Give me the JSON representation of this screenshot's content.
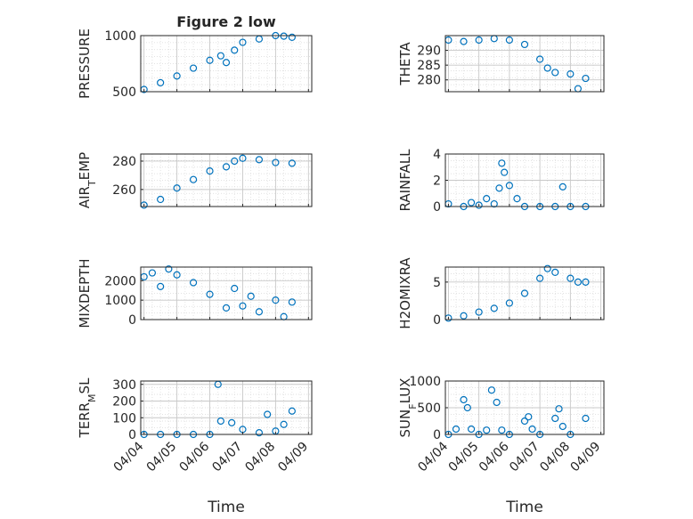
{
  "figure": {
    "title": "Figure 2 low",
    "xlabel": "Time",
    "x_tick_labels": [
      "04/04",
      "04/05",
      "04/06",
      "04/07",
      "04/08",
      "04/09"
    ],
    "marker_color": "#0072BD"
  },
  "chart_data": [
    {
      "type": "scatter",
      "name": "PRESSURE",
      "ylabel": "PRESSURE",
      "subscript": null,
      "xlim": [
        "04/04",
        "04/09"
      ],
      "ylim": [
        500,
        1000
      ],
      "yticks": [
        500,
        1000
      ],
      "grid": true,
      "title": "Figure 2 low",
      "x": [
        "04/04 00:00",
        "04/04 12:00",
        "04/05 00:00",
        "04/05 12:00",
        "04/06 00:00",
        "04/06 08:00",
        "04/06 12:00",
        "04/06 18:00",
        "04/07 00:00",
        "04/07 12:00",
        "04/08 00:00",
        "04/08 06:00",
        "04/08 12:00"
      ],
      "y": [
        520,
        580,
        640,
        710,
        780,
        820,
        760,
        870,
        940,
        970,
        1000,
        995,
        985
      ]
    },
    {
      "type": "scatter",
      "name": "THETA",
      "ylabel": "THETA",
      "subscript": null,
      "xlim": [
        "04/04",
        "04/09"
      ],
      "ylim": [
        276,
        295
      ],
      "yticks": [
        280,
        285,
        290
      ],
      "grid": true,
      "x": [
        "04/04 00:00",
        "04/04 12:00",
        "04/05 00:00",
        "04/05 12:00",
        "04/06 00:00",
        "04/06 12:00",
        "04/07 00:00",
        "04/07 06:00",
        "04/07 12:00",
        "04/08 00:00",
        "04/08 06:00",
        "04/08 12:00"
      ],
      "y": [
        293.5,
        293,
        293.5,
        294,
        293.5,
        292,
        287,
        284,
        282.5,
        282,
        277,
        280.5
      ]
    },
    {
      "type": "scatter",
      "name": "AIR_TEMP",
      "ylabel": "AIR",
      "subscript": "T",
      "ylabel_suffix": "EMP",
      "xlim": [
        "04/04",
        "04/09"
      ],
      "ylim": [
        248,
        285
      ],
      "yticks": [
        260,
        280
      ],
      "grid": true,
      "x": [
        "04/04 00:00",
        "04/04 12:00",
        "04/05 00:00",
        "04/05 12:00",
        "04/06 00:00",
        "04/06 12:00",
        "04/06 18:00",
        "04/07 00:00",
        "04/07 12:00",
        "04/08 00:00",
        "04/08 12:00"
      ],
      "y": [
        249,
        253,
        261,
        267,
        273,
        276,
        280,
        282,
        281,
        279,
        278.5
      ]
    },
    {
      "type": "scatter",
      "name": "RAINFALL",
      "ylabel": "RAINFALL",
      "subscript": null,
      "xlim": [
        "04/04",
        "04/09"
      ],
      "ylim": [
        0,
        4
      ],
      "yticks": [
        0,
        2,
        4
      ],
      "grid": true,
      "x": [
        "04/04 00:00",
        "04/04 12:00",
        "04/04 18:00",
        "04/05 00:00",
        "04/05 06:00",
        "04/05 12:00",
        "04/05 16:00",
        "04/05 18:00",
        "04/05 20:00",
        "04/06 00:00",
        "04/06 06:00",
        "04/06 12:00",
        "04/07 00:00",
        "04/07 12:00",
        "04/07 18:00",
        "04/08 00:00",
        "04/08 12:00"
      ],
      "y": [
        0.2,
        0,
        0.3,
        0.1,
        0.6,
        0.2,
        1.4,
        3.3,
        2.6,
        1.6,
        0.6,
        0,
        0,
        0,
        1.5,
        0,
        0
      ]
    },
    {
      "type": "scatter",
      "name": "MIXDEPTH",
      "ylabel": "MIXDEPTH",
      "subscript": null,
      "xlim": [
        "04/04",
        "04/09"
      ],
      "ylim": [
        0,
        2700
      ],
      "yticks": [
        0,
        1000,
        2000
      ],
      "grid": true,
      "x": [
        "04/04 00:00",
        "04/04 06:00",
        "04/04 12:00",
        "04/04 18:00",
        "04/05 00:00",
        "04/05 12:00",
        "04/06 00:00",
        "04/06 12:00",
        "04/06 18:00",
        "04/07 00:00",
        "04/07 06:00",
        "04/07 12:00",
        "04/08 00:00",
        "04/08 06:00",
        "04/08 12:00"
      ],
      "y": [
        2200,
        2400,
        1700,
        2600,
        2300,
        1900,
        1300,
        600,
        1600,
        700,
        1200,
        400,
        1000,
        150,
        900
      ]
    },
    {
      "type": "scatter",
      "name": "H2OMIXRA",
      "ylabel": "H2OMIXRA",
      "subscript": null,
      "xlim": [
        "04/04",
        "04/09"
      ],
      "ylim": [
        0,
        7
      ],
      "yticks": [
        0,
        5
      ],
      "grid": true,
      "x": [
        "04/04 00:00",
        "04/04 12:00",
        "04/05 00:00",
        "04/05 12:00",
        "04/06 00:00",
        "04/06 12:00",
        "04/07 00:00",
        "04/07 06:00",
        "04/07 12:00",
        "04/08 00:00",
        "04/08 06:00",
        "04/08 12:00"
      ],
      "y": [
        0.2,
        0.5,
        1.0,
        1.5,
        2.2,
        3.5,
        5.5,
        6.8,
        6.3,
        5.5,
        5.0,
        5.0
      ]
    },
    {
      "type": "scatter",
      "name": "TERR_MSL",
      "ylabel": "TERR",
      "subscript": "M",
      "ylabel_suffix": "SL",
      "xlim": [
        "04/04",
        "04/09"
      ],
      "ylim": [
        0,
        320
      ],
      "yticks": [
        0,
        100,
        200,
        300
      ],
      "grid": true,
      "x": [
        "04/04 00:00",
        "04/04 12:00",
        "04/05 00:00",
        "04/05 12:00",
        "04/06 00:00",
        "04/06 06:00",
        "04/06 08:00",
        "04/06 16:00",
        "04/07 00:00",
        "04/07 12:00",
        "04/07 18:00",
        "04/08 00:00",
        "04/08 06:00",
        "04/08 12:00"
      ],
      "y": [
        0,
        0,
        0,
        0,
        0,
        300,
        80,
        70,
        30,
        10,
        120,
        20,
        60,
        140
      ]
    },
    {
      "type": "scatter",
      "name": "SUN_FLUX",
      "ylabel": "SUN",
      "subscript": "F",
      "ylabel_suffix": "LUX",
      "xlim": [
        "04/04",
        "04/09"
      ],
      "ylim": [
        0,
        1000
      ],
      "yticks": [
        0,
        500,
        1000
      ],
      "grid": true,
      "x": [
        "04/04 00:00",
        "04/04 06:00",
        "04/04 12:00",
        "04/04 15:00",
        "04/04 18:00",
        "04/05 00:00",
        "04/05 06:00",
        "04/05 10:00",
        "04/05 14:00",
        "04/05 18:00",
        "04/06 00:00",
        "04/06 12:00",
        "04/06 15:00",
        "04/06 18:00",
        "04/07 00:00",
        "04/07 12:00",
        "04/07 15:00",
        "04/07 18:00",
        "04/08 00:00",
        "04/08 12:00"
      ],
      "y": [
        0,
        100,
        650,
        500,
        100,
        0,
        80,
        830,
        600,
        80,
        0,
        250,
        330,
        100,
        0,
        300,
        480,
        150,
        0,
        300
      ]
    }
  ]
}
